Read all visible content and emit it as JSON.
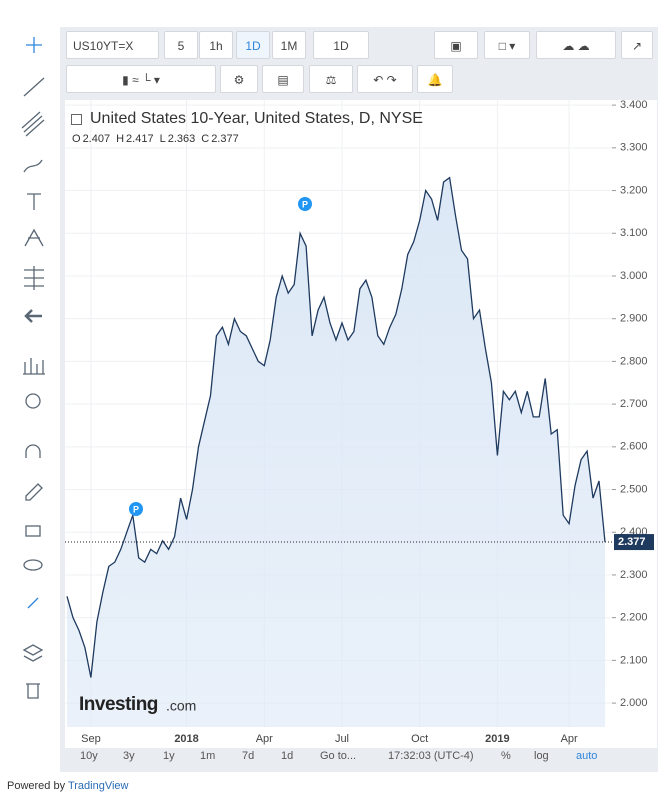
{
  "toolbar": {
    "symbol": "US10YT=X",
    "intervals": [
      "5",
      "1h",
      "1D",
      "1M",
      "1D"
    ]
  },
  "legend": {
    "title": "United States 10-Year, United States, D, NYSE",
    "ohlc": [
      {
        "key": "O",
        "value": "2.407"
      },
      {
        "key": "H",
        "value": "2.417"
      },
      {
        "key": "L",
        "value": "2.363"
      },
      {
        "key": "C",
        "value": "2.377"
      }
    ]
  },
  "logo": {
    "name": "Investing",
    "suffix": ".com"
  },
  "bottom_bar": {
    "ranges": [
      "10y",
      "3y",
      "1y",
      "1m",
      "7d",
      "1d"
    ],
    "goto": "Go to...",
    "time": "17:32:03 (UTC-4)",
    "options": [
      "%",
      "log",
      "auto"
    ]
  },
  "footer": {
    "prefix": "Powered by",
    "link": "TradingView"
  },
  "chart_data": {
    "type": "line",
    "categories": [
      null,
      null,
      null,
      null,
      "Sep",
      null,
      null,
      null,
      null,
      null,
      null,
      null,
      null,
      null,
      null,
      null,
      null,
      null,
      null,
      null,
      "2018",
      null,
      null,
      null,
      null,
      null,
      null,
      null,
      null,
      null,
      null,
      null,
      null,
      "Apr",
      null,
      null,
      null,
      null,
      null,
      null,
      null,
      null,
      null,
      null,
      null,
      null,
      "Jul",
      null,
      null,
      null,
      null,
      null,
      null,
      null,
      null,
      null,
      null,
      null,
      null,
      "Oct",
      null,
      null,
      null,
      null,
      null,
      null,
      null,
      null,
      null,
      null,
      null,
      null,
      "2019",
      null,
      null,
      null,
      null,
      null,
      null,
      null,
      null,
      null,
      null,
      null,
      "Apr",
      null,
      null,
      null,
      null,
      null,
      null
    ],
    "series": [
      {
        "color": "#1e3a5f",
        "fill": "#dce8f6",
        "values": [
          2.25,
          2.2,
          2.17,
          2.13,
          2.06,
          2.19,
          2.26,
          2.32,
          2.33,
          2.36,
          2.4,
          2.44,
          2.34,
          2.33,
          2.36,
          2.35,
          2.38,
          2.36,
          2.39,
          2.48,
          2.43,
          2.5,
          2.6,
          2.66,
          2.72,
          2.86,
          2.88,
          2.84,
          2.9,
          2.87,
          2.86,
          2.83,
          2.8,
          2.79,
          2.85,
          2.95,
          3.0,
          2.96,
          2.98,
          3.1,
          3.07,
          2.86,
          2.92,
          2.95,
          2.89,
          2.85,
          2.89,
          2.85,
          2.87,
          2.97,
          2.99,
          2.95,
          2.86,
          2.84,
          2.88,
          2.91,
          2.97,
          3.05,
          3.08,
          3.13,
          3.2,
          3.18,
          3.13,
          3.22,
          3.23,
          3.14,
          3.06,
          3.04,
          2.9,
          2.92,
          2.83,
          2.75,
          2.58,
          2.73,
          2.71,
          2.73,
          2.68,
          2.73,
          2.67,
          2.67,
          2.76,
          2.63,
          2.64,
          2.44,
          2.42,
          2.51,
          2.57,
          2.59,
          2.48,
          2.52,
          2.377
        ]
      }
    ],
    "ylim": [
      1.944,
      3.412
    ],
    "yticks": [
      {
        "value": 2.0,
        "label": "2.000"
      },
      {
        "value": 2.1,
        "label": "2.100"
      },
      {
        "value": 2.2,
        "label": "2.200"
      },
      {
        "value": 2.3,
        "label": "2.300"
      },
      {
        "value": 2.4,
        "label": "2.400"
      },
      {
        "value": 2.5,
        "label": "2.500"
      },
      {
        "value": 2.6,
        "label": "2.600"
      },
      {
        "value": 2.7,
        "label": "2.700"
      },
      {
        "value": 2.8,
        "label": "2.800"
      },
      {
        "value": 2.9,
        "label": "2.900"
      },
      {
        "value": 3.0,
        "label": "3.000"
      },
      {
        "value": 3.1,
        "label": "3.100"
      },
      {
        "value": 3.2,
        "label": "3.200"
      },
      {
        "value": 3.3,
        "label": "3.300"
      },
      {
        "value": 3.4,
        "label": "3.400"
      }
    ],
    "grid": true,
    "annotations": [
      "P",
      "P"
    ]
  }
}
